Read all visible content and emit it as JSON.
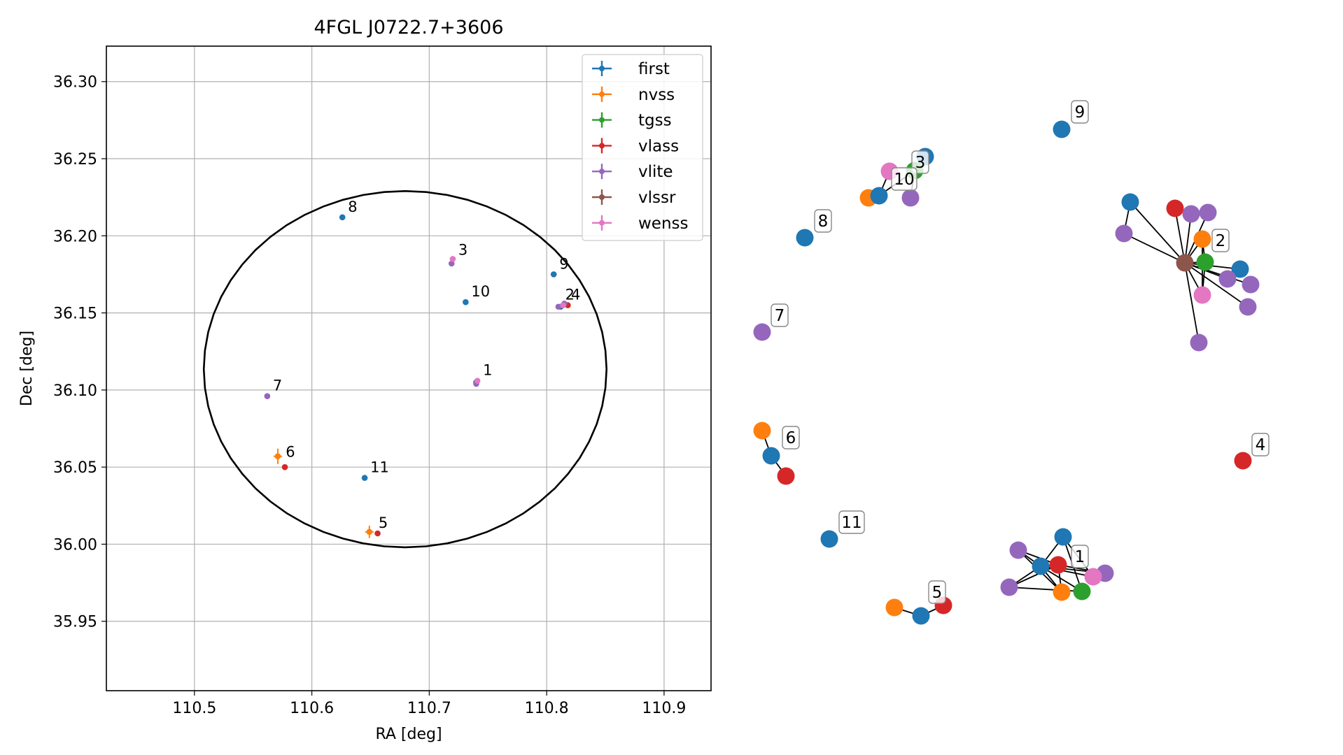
{
  "chart_data": [
    {
      "type": "scatter",
      "title": "4FGL J0722.7+3606",
      "xlabel": "RA [deg]",
      "ylabel": "Dec [deg]",
      "xlim": [
        110.425,
        110.94
      ],
      "ylim": [
        35.905,
        36.323
      ],
      "xticks": [
        110.5,
        110.6,
        110.7,
        110.8,
        110.9
      ],
      "xtick_labels": [
        "110.5",
        "110.6",
        "110.7",
        "110.8",
        "110.9"
      ],
      "yticks": [
        35.95,
        36.0,
        36.05,
        36.1,
        36.15,
        36.2,
        36.25,
        36.3
      ],
      "ytick_labels": [
        "35.95",
        "36.00",
        "36.05",
        "36.10",
        "36.15",
        "36.20",
        "36.25",
        "36.30"
      ],
      "grid": true,
      "legend_position": "top-right",
      "ellipse": {
        "ra": 110.6795,
        "dec": 36.1135,
        "ra_radius": 0.1715,
        "dec_radius": 0.1155,
        "color": "#000000"
      },
      "series": [
        {
          "name": "first",
          "color": "#1f77b4",
          "points": [
            {
              "ra": 110.626,
              "dec": 36.212
            },
            {
              "ra": 110.806,
              "dec": 36.175
            },
            {
              "ra": 110.731,
              "dec": 36.157
            },
            {
              "ra": 110.645,
              "dec": 36.043
            },
            {
              "ra": 110.74,
              "dec": 36.105
            },
            {
              "ra": 110.812,
              "dec": 36.154
            }
          ]
        },
        {
          "name": "nvss",
          "color": "#ff7f0e",
          "points": [
            {
              "ra": 110.571,
              "dec": 36.057,
              "dec_err": 0.005
            },
            {
              "ra": 110.649,
              "dec": 36.008,
              "dec_err": 0.004
            }
          ]
        },
        {
          "name": "tgss",
          "color": "#2ca02c",
          "points": []
        },
        {
          "name": "vlass",
          "color": "#d62728",
          "points": [
            {
              "ra": 110.577,
              "dec": 36.05
            },
            {
              "ra": 110.656,
              "dec": 36.007
            },
            {
              "ra": 110.818,
              "dec": 36.155
            }
          ]
        },
        {
          "name": "vlite",
          "color": "#9467bd",
          "points": [
            {
              "ra": 110.562,
              "dec": 36.096
            },
            {
              "ra": 110.719,
              "dec": 36.182
            },
            {
              "ra": 110.74,
              "dec": 36.104
            },
            {
              "ra": 110.81,
              "dec": 36.154
            },
            {
              "ra": 110.815,
              "dec": 36.156
            }
          ]
        },
        {
          "name": "vlssr",
          "color": "#8c564b",
          "points": []
        },
        {
          "name": "wenss",
          "color": "#e377c2",
          "points": [
            {
              "ra": 110.72,
              "dec": 36.185
            },
            {
              "ra": 110.741,
              "dec": 36.106
            },
            {
              "ra": 110.814,
              "dec": 36.155
            }
          ]
        }
      ],
      "point_labels": [
        {
          "text": "1",
          "ra": 110.741,
          "dec": 36.106
        },
        {
          "text": "2",
          "ra": 110.811,
          "dec": 36.155
        },
        {
          "text": "4",
          "ra": 110.816,
          "dec": 36.155
        },
        {
          "text": "3",
          "ra": 110.72,
          "dec": 36.184
        },
        {
          "text": "5",
          "ra": 110.652,
          "dec": 36.007
        },
        {
          "text": "6",
          "ra": 110.573,
          "dec": 36.053
        },
        {
          "text": "7",
          "ra": 110.562,
          "dec": 36.096
        },
        {
          "text": "8",
          "ra": 110.626,
          "dec": 36.212
        },
        {
          "text": "9",
          "ra": 110.806,
          "dec": 36.175
        },
        {
          "text": "10",
          "ra": 110.731,
          "dec": 36.157
        },
        {
          "text": "11",
          "ra": 110.645,
          "dec": 36.043
        }
      ]
    },
    {
      "type": "network",
      "colors": {
        "first": "#1f77b4",
        "nvss": "#ff7f0e",
        "tgss": "#2ca02c",
        "vlass": "#d62728",
        "vlite": "#9467bd",
        "vlssr": "#8c564b",
        "wenss": "#e377c2"
      },
      "labels": [
        "1",
        "2",
        "3",
        "4",
        "5",
        "6",
        "7",
        "8",
        "9",
        "10",
        "11"
      ]
    }
  ]
}
